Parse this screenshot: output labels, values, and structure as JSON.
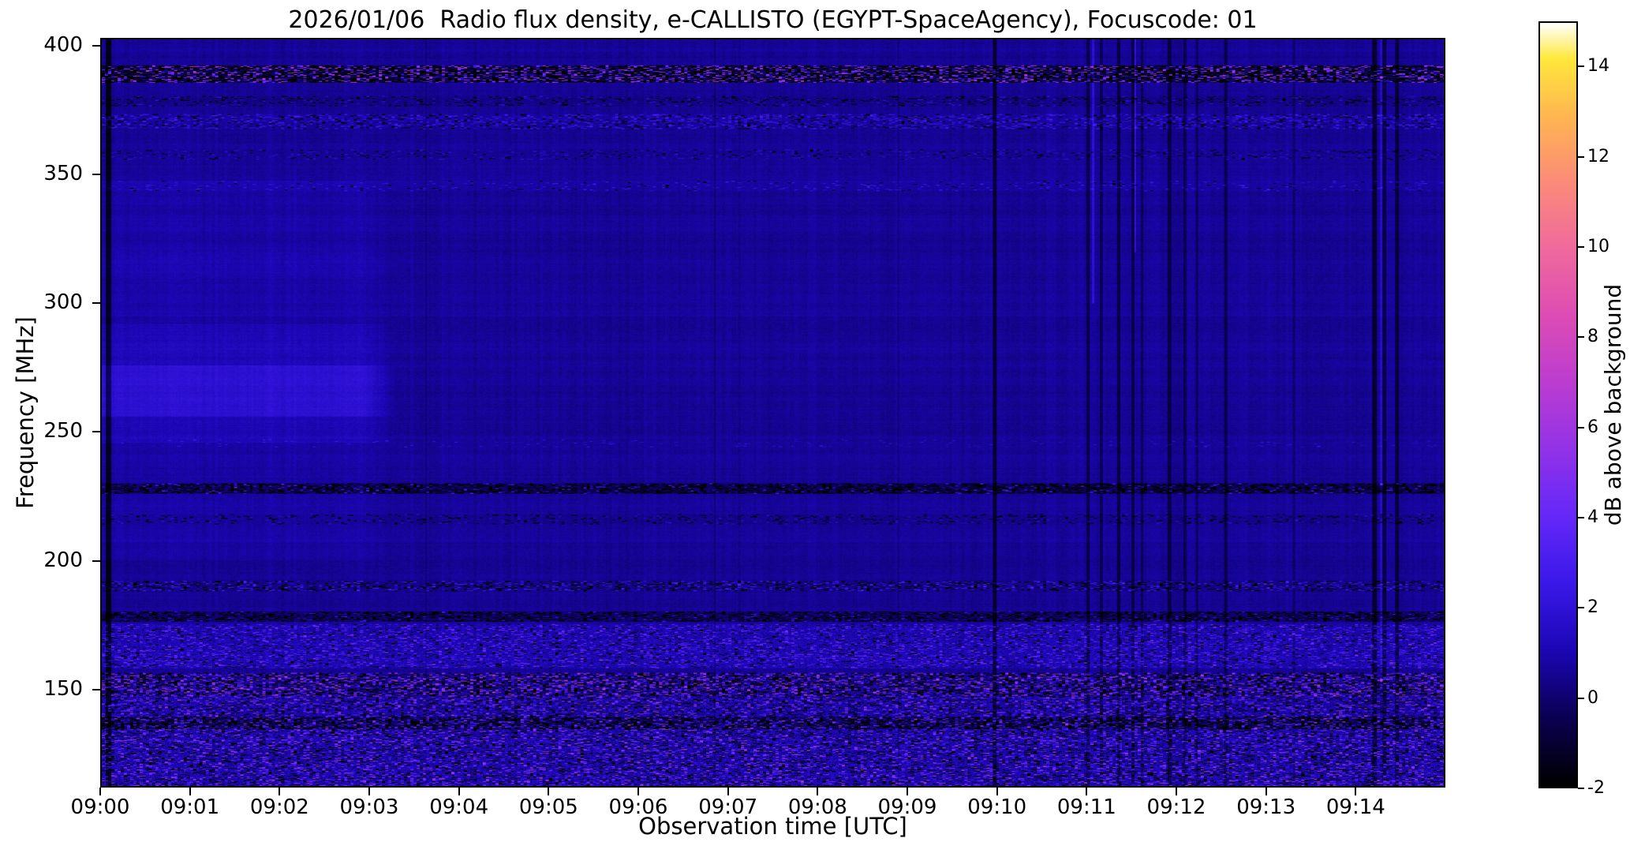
{
  "chart_data": {
    "type": "heatmap",
    "title": "2026/01/06  Radio flux density, e-CALLISTO (EGYPT-SpaceAgency), Focuscode: 01",
    "xlabel": "Observation time [UTC]",
    "ylabel": "Frequency [MHz]",
    "x_range_minutes": [
      0,
      15
    ],
    "x_ticks": [
      {
        "t": 0,
        "label": "09:00"
      },
      {
        "t": 1,
        "label": "09:01"
      },
      {
        "t": 2,
        "label": "09:02"
      },
      {
        "t": 3,
        "label": "09:03"
      },
      {
        "t": 4,
        "label": "09:04"
      },
      {
        "t": 5,
        "label": "09:05"
      },
      {
        "t": 6,
        "label": "09:06"
      },
      {
        "t": 7,
        "label": "09:07"
      },
      {
        "t": 8,
        "label": "09:08"
      },
      {
        "t": 9,
        "label": "09:09"
      },
      {
        "t": 10,
        "label": "09:10"
      },
      {
        "t": 11,
        "label": "09:11"
      },
      {
        "t": 12,
        "label": "09:12"
      },
      {
        "t": 13,
        "label": "09:13"
      },
      {
        "t": 14,
        "label": "09:14"
      }
    ],
    "y_range_mhz": [
      112,
      403
    ],
    "y_ticks": [
      400,
      350,
      300,
      250,
      200,
      150
    ],
    "colorbar": {
      "label": "dB above background",
      "range": [
        -2,
        15
      ],
      "ticks": [
        -2,
        0,
        2,
        4,
        6,
        8,
        10,
        12,
        14
      ],
      "stops": [
        {
          "v": -2,
          "c": "#000000"
        },
        {
          "v": -0.5,
          "c": "#0a0050"
        },
        {
          "v": 1,
          "c": "#1c06b4"
        },
        {
          "v": 2.5,
          "c": "#3a18e8"
        },
        {
          "v": 4,
          "c": "#6428f8"
        },
        {
          "v": 5.5,
          "c": "#9232e8"
        },
        {
          "v": 7,
          "c": "#bc3cd0"
        },
        {
          "v": 8.5,
          "c": "#dd4cb4"
        },
        {
          "v": 10,
          "c": "#f06a9c"
        },
        {
          "v": 11.5,
          "c": "#fb8c78"
        },
        {
          "v": 13,
          "c": "#ffb84e"
        },
        {
          "v": 14.2,
          "c": "#ffe83c"
        },
        {
          "v": 15,
          "c": "#ffffff"
        }
      ]
    },
    "background_level": 0.55,
    "left_bright_region": {
      "t_end": 3.3,
      "fade": 0.35,
      "layers": [
        {
          "f": [
            246,
            292
          ],
          "delta": 0.55
        },
        {
          "f": [
            256,
            276
          ],
          "delta": 0.75
        },
        {
          "f": [
            292,
            348
          ],
          "delta": 0.22
        },
        {
          "f": [
            200,
            246
          ],
          "delta": 0.18
        },
        {
          "f": [
            310,
            322
          ],
          "delta": 0.15
        }
      ]
    },
    "horizontal_bands": [
      {
        "f": [
          386,
          393
        ],
        "delta": -0.6,
        "dark_p": 0.45,
        "spk_p": 0.22,
        "spk": [
          2,
          7
        ],
        "noise": 0
      },
      {
        "f": [
          377,
          381
        ],
        "delta": -0.2,
        "dark_p": 0.1,
        "spk_p": 0.05,
        "spk": [
          0.5,
          2
        ],
        "noise": 0
      },
      {
        "f": [
          368,
          374
        ],
        "delta": 0.1,
        "dark_p": 0.08,
        "spk_p": 0.18,
        "spk": [
          0.8,
          2.5
        ],
        "noise": 0
      },
      {
        "f": [
          356,
          360
        ],
        "delta": 0.0,
        "dark_p": 0.05,
        "spk_p": 0.08,
        "spk": [
          0.5,
          1.5
        ],
        "noise": 0
      },
      {
        "f": [
          344,
          348
        ],
        "delta": 0.1,
        "dark_p": 0.02,
        "spk_p": 0.06,
        "spk": [
          0.5,
          2
        ],
        "noise": 0
      },
      {
        "f": [
          244,
          247
        ],
        "delta": 0.0,
        "dark_p": 0.0,
        "spk_p": 0.05,
        "spk": [
          0.5,
          1.5
        ],
        "noise": 0
      },
      {
        "f": [
          226,
          230
        ],
        "delta": -0.7,
        "dark_p": 0.4,
        "spk_p": 0.06,
        "spk": [
          1,
          4
        ],
        "noise": 0
      },
      {
        "f": [
          214,
          218
        ],
        "delta": -0.2,
        "dark_p": 0.08,
        "spk_p": 0.04,
        "spk": [
          0.5,
          1.5
        ],
        "noise": 0
      },
      {
        "f": [
          188,
          192
        ],
        "delta": -0.1,
        "dark_p": 0.18,
        "spk_p": 0.15,
        "spk": [
          0.8,
          3
        ],
        "noise": 0
      },
      {
        "f": [
          176,
          180
        ],
        "delta": -0.6,
        "dark_p": 0.35,
        "spk_p": 0.05,
        "spk": [
          1,
          3
        ],
        "noise": 0
      },
      {
        "f": [
          158,
          175
        ],
        "delta": 0.45,
        "dark_p": 0.06,
        "spk_p": 0.15,
        "spk": [
          0.8,
          3.5
        ],
        "noise": 0.7
      },
      {
        "f": [
          147,
          156
        ],
        "delta": 0.2,
        "dark_p": 0.28,
        "spk_p": 0.2,
        "spk": [
          1.5,
          6
        ],
        "noise": 1.0
      },
      {
        "f": [
          134,
          139
        ],
        "delta": -0.5,
        "dark_p": 0.5,
        "spk_p": 0.08,
        "spk": [
          1,
          4
        ],
        "noise": 0
      },
      {
        "f": [
          112,
          147
        ],
        "delta": 0.35,
        "dark_p": 0.14,
        "spk_p": 0.16,
        "spk": [
          1,
          5
        ],
        "noise": 0.9
      }
    ],
    "vertical_dark_lines": [
      {
        "t": 0.07,
        "w": 0.045,
        "d": -2.2
      },
      {
        "t": 3.62,
        "w": 0.015,
        "d": -0.5
      },
      {
        "t": 6.85,
        "w": 0.015,
        "d": -0.5
      },
      {
        "t": 8.9,
        "w": 0.015,
        "d": -0.5
      },
      {
        "t": 9.98,
        "w": 0.035,
        "d": -1.6
      },
      {
        "t": 11.02,
        "w": 0.03,
        "d": -1.2
      },
      {
        "t": 11.17,
        "w": 0.025,
        "d": -1.0
      },
      {
        "t": 11.36,
        "w": 0.03,
        "d": -1.3
      },
      {
        "t": 11.52,
        "w": 0.025,
        "d": -1.1
      },
      {
        "t": 11.62,
        "w": 0.02,
        "d": -0.9
      },
      {
        "t": 11.93,
        "w": 0.03,
        "d": -1.2
      },
      {
        "t": 12.1,
        "w": 0.025,
        "d": -1.0
      },
      {
        "t": 12.24,
        "w": 0.02,
        "d": -0.8
      },
      {
        "t": 12.56,
        "w": 0.03,
        "d": -1.1
      },
      {
        "t": 13.32,
        "w": 0.02,
        "d": -0.7
      },
      {
        "t": 14.22,
        "w": 0.04,
        "d": -1.5
      },
      {
        "t": 14.33,
        "w": 0.03,
        "d": -1.2
      },
      {
        "t": 14.47,
        "w": 0.035,
        "d": -1.4
      }
    ],
    "vertical_bright_lines": [
      {
        "t": 11.08,
        "w": 0.02,
        "d": 1.2,
        "f_min": 300
      },
      {
        "t": 11.55,
        "w": 0.02,
        "d": 1.5,
        "f_min": 320
      },
      {
        "t": 14.3,
        "w": 0.02,
        "d": 1.0,
        "f_min": 150
      }
    ]
  }
}
